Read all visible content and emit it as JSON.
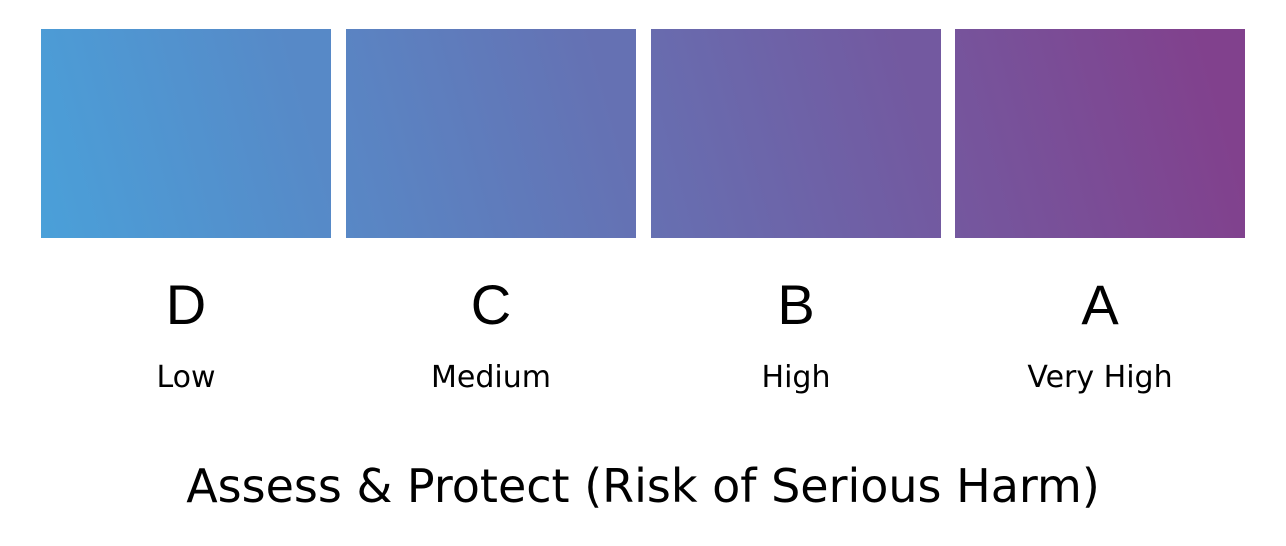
{
  "gradient": {
    "start_color": "#4aa0d9",
    "end_color": "#81418d"
  },
  "levels": [
    {
      "grade": "D",
      "label": "Low"
    },
    {
      "grade": "C",
      "label": "Medium"
    },
    {
      "grade": "B",
      "label": "High"
    },
    {
      "grade": "A",
      "label": "Very High"
    }
  ],
  "title": "Assess & Protect (Risk of Serious Harm)"
}
